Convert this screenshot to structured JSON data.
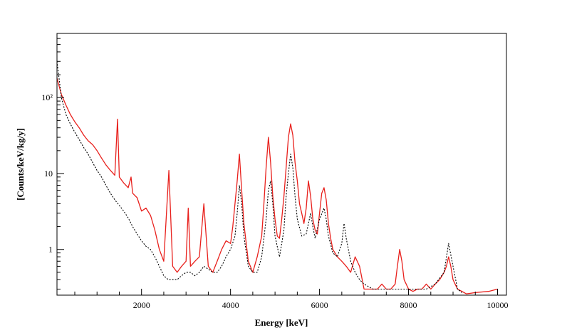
{
  "chart_data": {
    "type": "line",
    "title": "",
    "xlabel": "Energy [keV]",
    "ylabel": "[Counts/keV/kg/y]",
    "xlim": [
      100,
      10200
    ],
    "ylim": [
      0.25,
      700
    ],
    "y_scale": "log",
    "grid": false,
    "legend": "none",
    "x_ticks": [
      2000,
      4000,
      6000,
      8000,
      10000
    ],
    "x_tick_labels": [
      "2000",
      "4000",
      "6000",
      "8000",
      "10000"
    ],
    "y_ticks": [
      1,
      10,
      100
    ],
    "y_tick_labels": [
      "1",
      "10",
      "10²"
    ],
    "series": [
      {
        "color": "#e8201c",
        "style": "solid",
        "x": [
          100,
          200,
          300,
          400,
          500,
          600,
          700,
          800,
          900,
          1000,
          1100,
          1200,
          1300,
          1400,
          1460,
          1500,
          1600,
          1700,
          1764,
          1800,
          1900,
          2000,
          2100,
          2204,
          2300,
          2400,
          2500,
          2614,
          2700,
          2800,
          2900,
          3000,
          3050,
          3100,
          3200,
          3300,
          3400,
          3500,
          3600,
          3700,
          3800,
          3900,
          4000,
          4050,
          4100,
          4150,
          4200,
          4250,
          4300,
          4400,
          4500,
          4600,
          4700,
          4750,
          4800,
          4850,
          4900,
          4950,
          5000,
          5050,
          5100,
          5150,
          5200,
          5250,
          5300,
          5350,
          5400,
          5450,
          5500,
          5550,
          5600,
          5650,
          5700,
          5750,
          5800,
          5850,
          5900,
          5950,
          6000,
          6050,
          6100,
          6150,
          6200,
          6250,
          6300,
          6400,
          6500,
          6600,
          6700,
          6800,
          6900,
          7000,
          7100,
          7200,
          7300,
          7400,
          7500,
          7600,
          7700,
          7750,
          7800,
          7850,
          7900,
          8000,
          8100,
          8200,
          8300,
          8400,
          8500,
          8600,
          8700,
          8800,
          8850,
          8900,
          8950,
          9000,
          9100,
          9200,
          9300,
          9500,
          9800,
          10000
        ],
        "y": [
          180,
          110,
          80,
          60,
          48,
          40,
          32,
          27,
          24,
          20,
          16,
          13,
          11,
          9.5,
          52,
          9,
          7.5,
          6.5,
          9,
          5.5,
          4.8,
          3.2,
          3.5,
          2.8,
          1.8,
          1.0,
          0.7,
          11,
          0.6,
          0.5,
          0.6,
          0.7,
          3.5,
          0.6,
          0.7,
          0.8,
          4,
          0.6,
          0.5,
          0.7,
          1.0,
          1.3,
          1.2,
          2.0,
          4.0,
          8,
          18,
          6,
          2.2,
          0.7,
          0.5,
          0.8,
          1.5,
          4,
          12,
          30,
          14,
          5,
          2.5,
          1.5,
          1.4,
          2.5,
          5,
          12,
          30,
          45,
          32,
          14,
          8,
          4,
          3,
          2.2,
          3.5,
          8,
          5,
          2.5,
          1.8,
          1.6,
          3,
          5.5,
          6.5,
          4.5,
          2.2,
          1.4,
          1.0,
          0.8,
          0.7,
          0.6,
          0.5,
          0.8,
          0.6,
          0.3,
          0.3,
          0.3,
          0.3,
          0.35,
          0.3,
          0.3,
          0.35,
          0.6,
          1.0,
          0.7,
          0.4,
          0.3,
          0.28,
          0.3,
          0.3,
          0.35,
          0.3,
          0.35,
          0.4,
          0.5,
          0.6,
          0.8,
          0.6,
          0.4,
          0.3,
          0.28,
          0.26,
          0.27,
          0.28,
          0.3
        ]
      },
      {
        "color": "#000000",
        "style": "dotted",
        "x": [
          100,
          200,
          300,
          400,
          500,
          600,
          700,
          800,
          900,
          1000,
          1100,
          1200,
          1300,
          1400,
          1500,
          1600,
          1700,
          1800,
          1900,
          2000,
          2100,
          2200,
          2300,
          2400,
          2500,
          2600,
          2700,
          2800,
          2900,
          3000,
          3100,
          3200,
          3300,
          3400,
          3500,
          3600,
          3700,
          3800,
          3900,
          4000,
          4100,
          4150,
          4200,
          4250,
          4300,
          4400,
          4500,
          4600,
          4700,
          4800,
          4850,
          4900,
          4950,
          5000,
          5100,
          5200,
          5250,
          5300,
          5350,
          5400,
          5450,
          5500,
          5600,
          5700,
          5800,
          5850,
          5900,
          6000,
          6100,
          6150,
          6200,
          6300,
          6400,
          6500,
          6550,
          6600,
          6700,
          6800,
          6900,
          7000,
          7200,
          7400,
          7600,
          7800,
          8000,
          8200,
          8400,
          8600,
          8800,
          8900,
          9000,
          9100,
          9200
        ],
        "y": [
          300,
          100,
          60,
          45,
          35,
          28,
          22,
          18,
          14,
          11,
          9,
          7,
          5.5,
          4.5,
          3.8,
          3.2,
          2.6,
          2.0,
          1.6,
          1.3,
          1.1,
          1.0,
          0.8,
          0.6,
          0.45,
          0.4,
          0.4,
          0.4,
          0.45,
          0.5,
          0.5,
          0.45,
          0.5,
          0.6,
          0.55,
          0.5,
          0.5,
          0.6,
          0.8,
          1.0,
          1.5,
          3,
          7,
          4,
          1.5,
          0.6,
          0.5,
          0.5,
          0.8,
          2.5,
          6,
          8,
          4,
          1.5,
          0.8,
          1.8,
          5,
          10,
          18,
          12,
          5,
          2.5,
          1.5,
          1.6,
          3,
          2,
          1.4,
          2.5,
          3.5,
          2.5,
          1.5,
          0.9,
          0.8,
          1.2,
          2.2,
          1.4,
          0.7,
          0.5,
          0.4,
          0.35,
          0.3,
          0.3,
          0.3,
          0.3,
          0.3,
          0.3,
          0.3,
          0.35,
          0.5,
          1.2,
          0.6,
          0.3,
          0.27
        ]
      }
    ]
  }
}
